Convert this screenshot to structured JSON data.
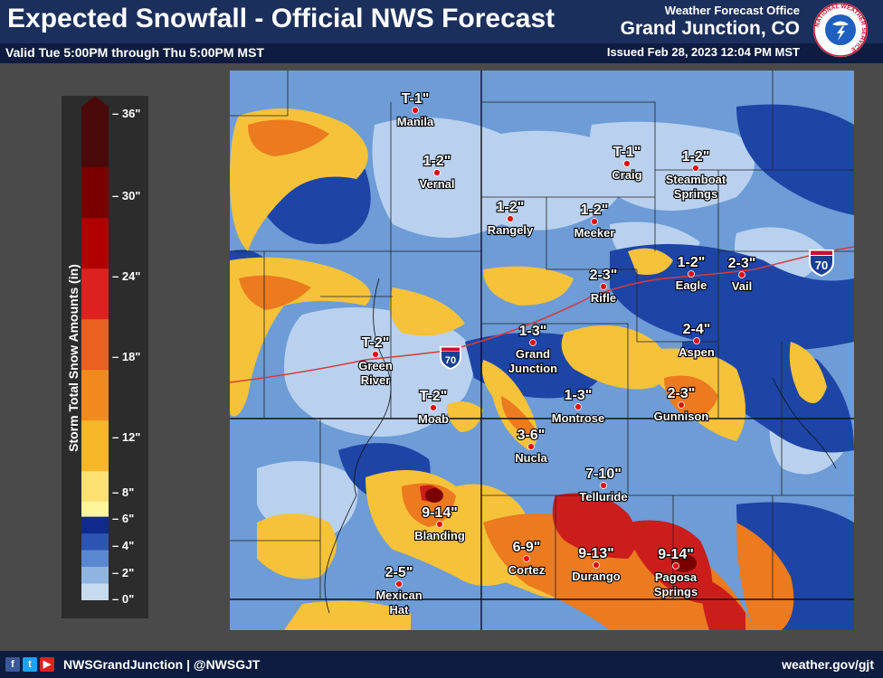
{
  "header": {
    "title": "Expected Snowfall - Official NWS Forecast",
    "valid": "Valid Tue 5:00PM through Thu 5:00PM MST",
    "office_line1": "Weather Forecast Office",
    "office_line2": "Grand Junction, CO",
    "issued": "Issued Feb 28, 2023 12:04 PM MST",
    "logo_text": "NATIONAL WEATHER SERVICE"
  },
  "legend": {
    "title": "Storm Total Snow Amounts (in)",
    "ticks": [
      "36\"",
      "30\"",
      "24\"",
      "18\"",
      "12\"",
      "8\"",
      "6\"",
      "4\"",
      "2\"",
      "0\""
    ],
    "colors": [
      "#4a0a0a",
      "#7a0000",
      "#b00000",
      "#dd2020",
      "#ea6020",
      "#f08a1c",
      "#f5b628",
      "#fde070",
      "#fff59a",
      "#0f2a8a",
      "#2b55b0",
      "#5a88d0",
      "#8fb4e0",
      "#c6dbf0"
    ]
  },
  "map": {
    "interstate": "70",
    "locations": [
      {
        "name": "Manila",
        "amount": "T-1\""
      },
      {
        "name": "Vernal",
        "amount": "1-2\""
      },
      {
        "name": "Craig",
        "amount": "T-1\""
      },
      {
        "name": "Steamboat Springs",
        "amount": "1-2\""
      },
      {
        "name": "Rangely",
        "amount": "1-2\""
      },
      {
        "name": "Meeker",
        "amount": "1-2\""
      },
      {
        "name": "Rifle",
        "amount": "2-3\""
      },
      {
        "name": "Eagle",
        "amount": "1-2\""
      },
      {
        "name": "Vail",
        "amount": "2-3\""
      },
      {
        "name": "Aspen",
        "amount": "2-4\""
      },
      {
        "name": "Green River",
        "amount": "T-2\""
      },
      {
        "name": "Grand Junction",
        "amount": "1-3\""
      },
      {
        "name": "Moab",
        "amount": "T-2\""
      },
      {
        "name": "Montrose",
        "amount": "1-3\""
      },
      {
        "name": "Gunnison",
        "amount": "2-3\""
      },
      {
        "name": "Nucla",
        "amount": "3-6\""
      },
      {
        "name": "Telluride",
        "amount": "7-10\""
      },
      {
        "name": "Blanding",
        "amount": "9-14\""
      },
      {
        "name": "Cortez",
        "amount": "6-9\""
      },
      {
        "name": "Durango",
        "amount": "9-13\""
      },
      {
        "name": "Pagosa Springs",
        "amount": "9-14\""
      },
      {
        "name": "Mexican Hat",
        "amount": "2-5\""
      }
    ]
  },
  "footer": {
    "handle": "NWSGrandJunction | @NWSGJT",
    "website": "weather.gov/gjt"
  }
}
